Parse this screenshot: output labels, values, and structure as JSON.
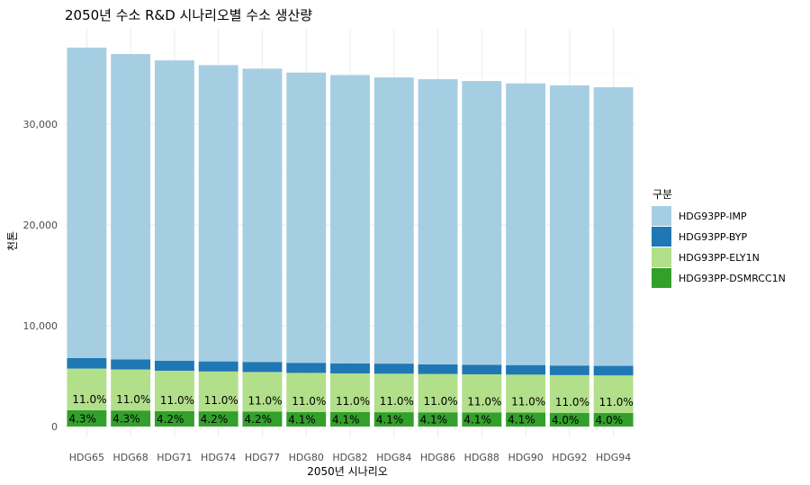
{
  "chart_data": {
    "type": "bar",
    "stacked": true,
    "title": "2050년 수소 R&D 시나리오별 수소 생산량",
    "xlabel": "2050년 시나리오",
    "ylabel": "천톤",
    "ylim": [
      0,
      38500
    ],
    "yticks": [
      0,
      10000,
      20000,
      30000
    ],
    "ytick_labels": [
      "0",
      "10,000",
      "20,000",
      "30,000"
    ],
    "grid": true,
    "legend_title": "구분",
    "legend_position": "right",
    "categories": [
      "HDG65",
      "HDG68",
      "HDG71",
      "HDG74",
      "HDG77",
      "HDG80",
      "HDG82",
      "HDG84",
      "HDG86",
      "HDG88",
      "HDG90",
      "HDG92",
      "HDG94"
    ],
    "series": [
      {
        "name": "HDG93PP-DSMRCC1N",
        "color": "#33a02c",
        "values": [
          1620,
          1590,
          1530,
          1510,
          1490,
          1450,
          1430,
          1420,
          1410,
          1400,
          1390,
          1360,
          1350
        ],
        "labels": [
          "4.3%",
          "4.3%",
          "4.2%",
          "4.2%",
          "4.2%",
          "4.1%",
          "4.1%",
          "4.1%",
          "4.1%",
          "4.1%",
          "4.1%",
          "4.0%",
          "4.0%"
        ]
      },
      {
        "name": "HDG93PP-ELY1N",
        "color": "#b2df8a",
        "values": [
          4130,
          4070,
          4000,
          3950,
          3920,
          3870,
          3840,
          3820,
          3800,
          3780,
          3760,
          3740,
          3720
        ],
        "labels": [
          "11.0%",
          "11.0%",
          "11.0%",
          "11.0%",
          "11.0%",
          "11.0%",
          "11.0%",
          "11.0%",
          "11.0%",
          "11.0%",
          "11.0%",
          "11.0%",
          "11.0%"
        ]
      },
      {
        "name": "HDG93PP-BYP",
        "color": "#1f78b4",
        "values": [
          1050,
          1000,
          1000,
          1000,
          1000,
          1000,
          1000,
          1000,
          950,
          950,
          950,
          950,
          950
        ]
      },
      {
        "name": "HDG93PP-IMP",
        "color": "#a6cee3",
        "values": [
          30800,
          30300,
          29800,
          29400,
          29100,
          28800,
          28600,
          28400,
          28300,
          28150,
          27950,
          27800,
          27650
        ]
      }
    ],
    "legend_order": [
      "HDG93PP-IMP",
      "HDG93PP-BYP",
      "HDG93PP-ELY1N",
      "HDG93PP-DSMRCC1N"
    ]
  }
}
